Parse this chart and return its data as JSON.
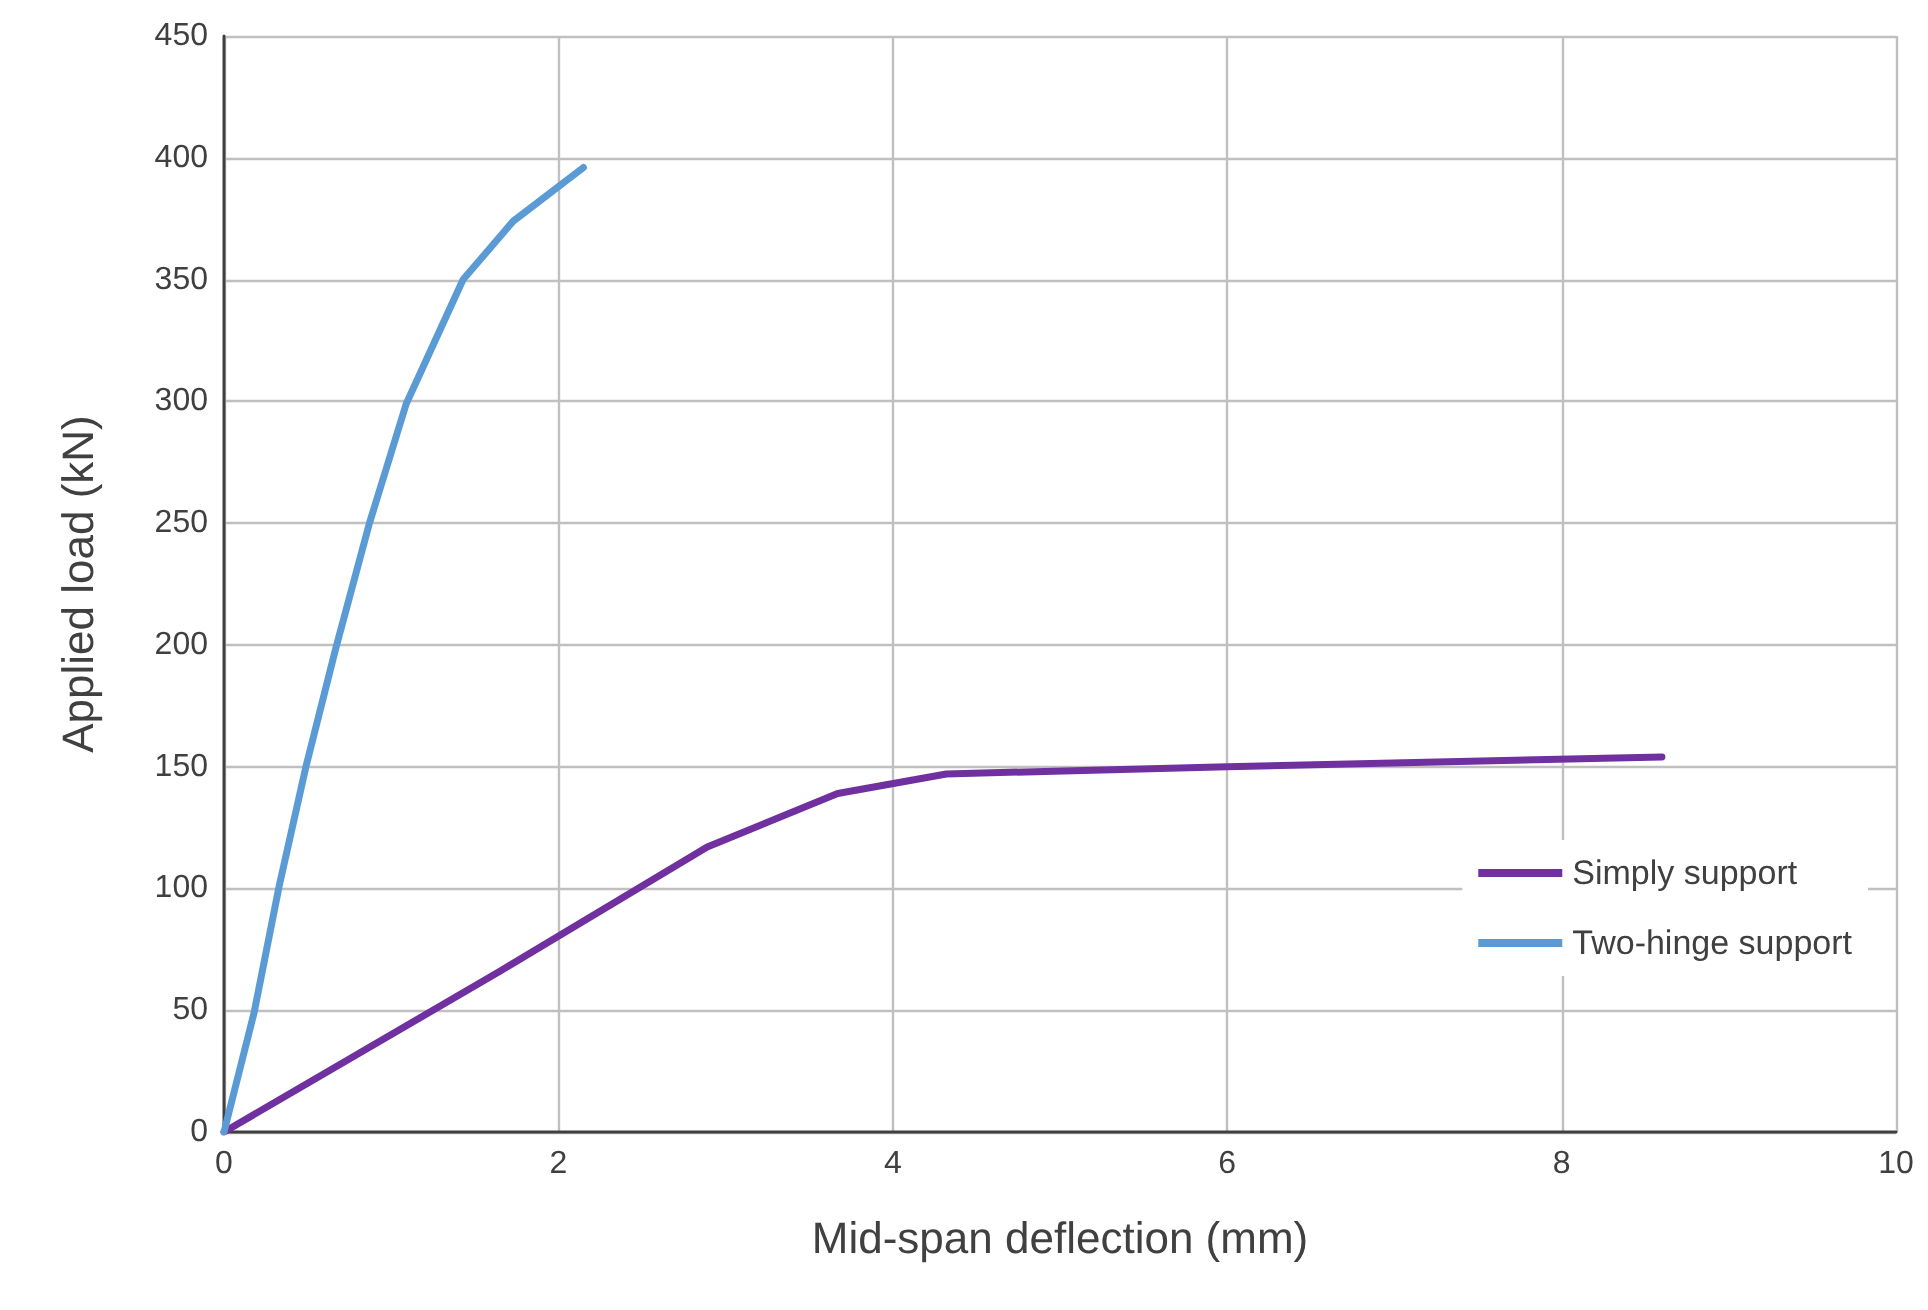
{
  "chart_data": {
    "type": "line",
    "xlabel": "Mid-span deflection (mm)",
    "ylabel": "Applied load (kN)",
    "xlim": [
      0,
      10
    ],
    "xticks": [
      0,
      2,
      4,
      6,
      8,
      10
    ],
    "ylim": [
      0,
      450
    ],
    "yticks": [
      0,
      50,
      100,
      150,
      200,
      250,
      300,
      350,
      400,
      450
    ],
    "grid": true,
    "legend": "right",
    "marker": "none",
    "line_style": "solid",
    "series": [
      {
        "name": "Simply support",
        "color": "#7030a0",
        "x": [
          0,
          1.65,
          2.89,
          3.67,
          4.32,
          6.0,
          8.6
        ],
        "values": [
          0,
          66,
          117,
          139,
          147,
          150,
          154
        ]
      },
      {
        "name": "Two-hinge support",
        "color": "#5b9bd5",
        "x": [
          0,
          0.18,
          0.33,
          0.49,
          0.67,
          0.87,
          1.09,
          1.43,
          1.73,
          2.15
        ],
        "values": [
          0,
          49,
          101,
          150,
          199,
          250,
          299,
          350,
          374,
          396
        ]
      }
    ]
  }
}
